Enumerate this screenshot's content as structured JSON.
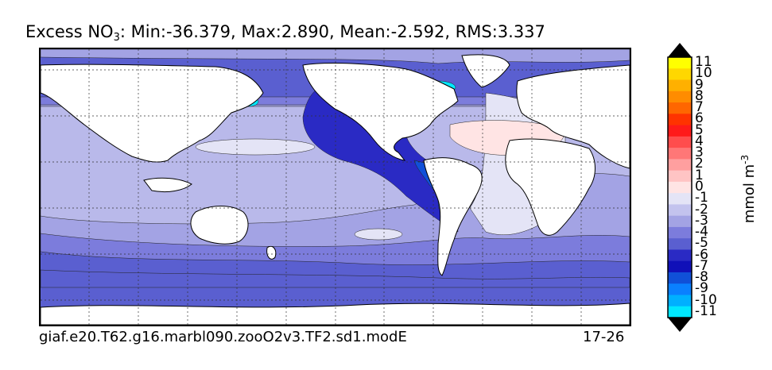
{
  "title": {
    "variable": "Excess NO",
    "subscript": "3",
    "stats": ": Min:-36.379, Max:2.890, Mean:-2.592, RMS:3.337"
  },
  "caption": {
    "case_name": "giaf.e20.T62.g16.marbl090.zooO2v3.TF2.sd1.modE",
    "years": "17-26"
  },
  "colorbar": {
    "units_base": "mmol m",
    "units_exp": "-3",
    "ticks": [
      "11",
      "10",
      "9",
      "8",
      "7",
      "6",
      "5",
      "4",
      "3",
      "2",
      "1",
      "0",
      "-1",
      "-2",
      "-3",
      "-4",
      "-5",
      "-6",
      "-7",
      "-8",
      "-9",
      "-10",
      "-11"
    ],
    "colors": [
      "#ffff00",
      "#ffd700",
      "#ffb000",
      "#ff8c00",
      "#ff6600",
      "#ff3300",
      "#ff1a1a",
      "#ff4d4d",
      "#ff7777",
      "#ff9f9f",
      "#ffc4c4",
      "#ffe4e4",
      "#e4e4f6",
      "#c3c3ee",
      "#a3a3e4",
      "#7c7cdc",
      "#5a5fd0",
      "#2a2ac4",
      "#1010b8",
      "#1050d8",
      "#0a80ff",
      "#00b0ff",
      "#00e8ff"
    ],
    "extend_top_color": "#000000",
    "extend_bottom_color": "#000000"
  },
  "map": {
    "ocean_base_color": "#5a5fd0",
    "land_color": "#ffffff",
    "grid": "dotted"
  }
}
